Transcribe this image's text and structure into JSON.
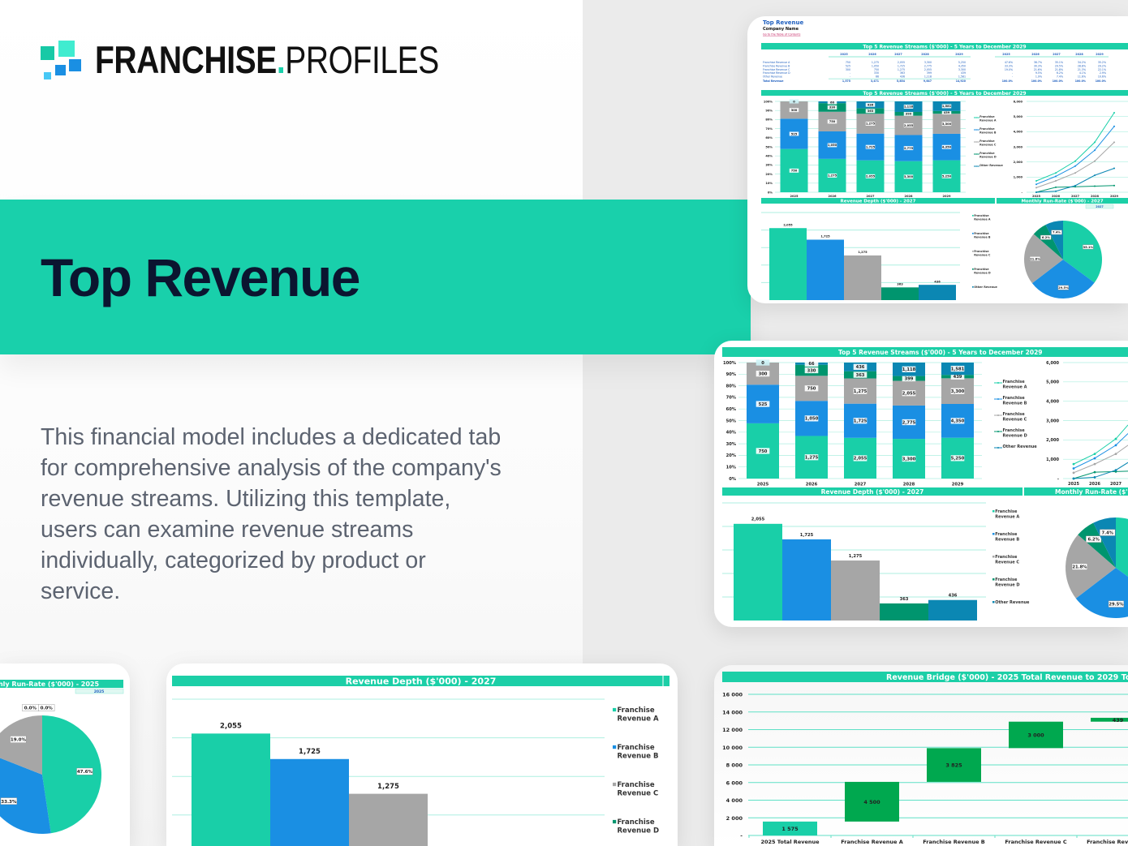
{
  "brand": {
    "name_bold": "FRANCHISE",
    "dot": ".",
    "name_light": "PROFILES"
  },
  "hero": {
    "title": "Top Revenue",
    "description": "This financial model includes a dedicated tab for comprehensive analysis of the company's revenue streams. Utilizing this template, users can examine revenue streams individually, categorized by product or service."
  },
  "sheet": {
    "title": "Top Revenue",
    "company": "Company Name",
    "toc_link": "Go to the Table of Contents"
  },
  "colors": {
    "accent": "#19d0ab",
    "franchise_revenue_a": "#19cfa8",
    "franchise_revenue_b": "#1a8fe3",
    "franchise_revenue_c": "#a6a6a6",
    "franchise_revenue_d": "#00956e",
    "other_revenue": "#0b87b3",
    "bridge_step": "#00a84f",
    "title_text": "#0b1530"
  },
  "chart_data": [
    {
      "type": "table",
      "title": "Top 5 Revenue Streams ($'000) - 5 Years to December 2029",
      "columns": [
        "2025",
        "2026",
        "2027",
        "2028",
        "2029"
      ],
      "rows": [
        {
          "name": "Franchise Revenue A",
          "values": [
            "750",
            "1,275",
            "2,055",
            "3,300",
            "5,250"
          ],
          "pct": [
            "47.6%",
            "36.7%",
            "35.1%",
            "34.2%",
            "35.2%"
          ]
        },
        {
          "name": "Franchise Revenue B",
          "values": [
            "525",
            "1,050",
            "1,725",
            "2,775",
            "4,350"
          ],
          "pct": [
            "33.3%",
            "30.3%",
            "29.5%",
            "28.8%",
            "29.2%"
          ]
        },
        {
          "name": "Franchise Revenue C",
          "values": [
            "300",
            "750",
            "1,275",
            "2,055",
            "3,300"
          ],
          "pct": [
            "19.0%",
            "21.6%",
            "21.8%",
            "21.3%",
            "22.1%"
          ]
        },
        {
          "name": "Franchise Revenue D",
          "values": [
            "-",
            "330",
            "363",
            "399",
            "439"
          ],
          "pct": [
            "-",
            "9.5%",
            "6.2%",
            "4.1%",
            "2.9%"
          ]
        },
        {
          "name": "Other Revenue",
          "values": [
            "-",
            "66",
            "436",
            "1,118",
            "1,581"
          ],
          "pct": [
            "-",
            "1.9%",
            "7.4%",
            "11.6%",
            "10.6%"
          ]
        },
        {
          "name": "Total Revenue",
          "values": [
            "1,575",
            "3,471",
            "5,854",
            "9,647",
            "14,920"
          ],
          "pct": [
            "100.0%",
            "100.0%",
            "100.0%",
            "100.0%",
            "100.0%"
          ]
        }
      ]
    },
    {
      "type": "bar",
      "stacked": "percent",
      "title": "Top 5 Revenue Streams ($'000) - 5 Years to December 2029",
      "categories": [
        "2025",
        "2026",
        "2027",
        "2028",
        "2029"
      ],
      "y_tick_labels": [
        "0%",
        "10%",
        "20%",
        "30%",
        "40%",
        "50%",
        "60%",
        "70%",
        "80%",
        "90%",
        "100%"
      ],
      "ylim": [
        0,
        100
      ],
      "legend": "right",
      "series": [
        {
          "name": "Franchise Revenue A",
          "values": [
            750,
            1275,
            2055,
            3300,
            5250
          ]
        },
        {
          "name": "Franchise Revenue B",
          "values": [
            525,
            1050,
            1725,
            2775,
            4350
          ]
        },
        {
          "name": "Franchise Revenue C",
          "values": [
            300,
            750,
            1275,
            2055,
            3300
          ]
        },
        {
          "name": "Franchise Revenue D",
          "values": [
            0,
            330,
            363,
            399,
            439
          ]
        },
        {
          "name": "Other Revenue",
          "values": [
            0,
            66,
            436,
            1118,
            1581
          ]
        }
      ]
    },
    {
      "type": "line",
      "x": [
        "2025",
        "2026",
        "2027",
        "2028",
        "2029"
      ],
      "y_tick_labels": [
        "-",
        "1,000",
        "2,000",
        "3,000",
        "4,000",
        "5,000",
        "6,000"
      ],
      "ylim": [
        0,
        6000
      ],
      "series": [
        {
          "name": "Franchise Revenue A",
          "values": [
            750,
            1275,
            2055,
            3300,
            5250
          ]
        },
        {
          "name": "Franchise Revenue B",
          "values": [
            525,
            1050,
            1725,
            2775,
            4350
          ]
        },
        {
          "name": "Franchise Revenue C",
          "values": [
            300,
            750,
            1275,
            2055,
            3300
          ]
        },
        {
          "name": "Franchise Revenue D",
          "values": [
            0,
            330,
            363,
            399,
            439
          ]
        },
        {
          "name": "Other Revenue",
          "values": [
            0,
            66,
            436,
            1118,
            1581
          ]
        }
      ]
    },
    {
      "type": "bar",
      "title": "Revenue Depth ($'000) - 2027",
      "categories": [
        "Franchise Revenue A",
        "Franchise Revenue B",
        "Franchise Revenue C",
        "Franchise Revenue D",
        "Other Revenue"
      ],
      "values": [
        2055,
        1725,
        1275,
        363,
        436
      ],
      "value_labels": [
        "2,055",
        "1,725",
        "1,275",
        "363",
        "436"
      ],
      "ylim": [
        0,
        2500
      ],
      "grid": true,
      "legend": "right"
    },
    {
      "type": "pie",
      "title": "Monthly Run-Rate ($'000) - 2027",
      "selector": "2027",
      "categories": [
        "Franchise Revenue A",
        "Franchise Revenue B",
        "Franchise Revenue C",
        "Franchise Revenue D",
        "Other Revenue"
      ],
      "values": [
        35.1,
        29.5,
        21.8,
        6.2,
        7.4
      ],
      "value_labels": [
        "35.1%",
        "29.5%",
        "21.8%",
        "6.2%",
        "7.4%"
      ]
    },
    {
      "type": "pie",
      "title": "Monthly Run-Rate ($'000) - 2025",
      "selector": "2025",
      "categories": [
        "Franchise Revenue A",
        "Franchise Revenue B",
        "Franchise Revenue C",
        "Franchise Revenue D",
        "Other Revenue"
      ],
      "values": [
        47.6,
        33.3,
        19.0,
        0.0,
        0.0
      ],
      "value_labels": [
        "47.6%",
        "33.3%",
        "19.0%",
        "0.0%",
        "0.0%"
      ]
    },
    {
      "type": "bar",
      "waterfall": true,
      "title": "Revenue Bridge ($'000) - 2025 Total Revenue to 2029 Total Revenue",
      "categories": [
        "2025 Total Revenue",
        "Franchise Revenue A",
        "Franchise Revenue B",
        "Franchise Revenue C",
        "Franchise Revenue D"
      ],
      "values": [
        1575,
        4500,
        3825,
        3000,
        439
      ],
      "value_labels": [
        "1 575",
        "4 500",
        "3 825",
        "3 000",
        "439"
      ],
      "y_tick_labels": [
        "-",
        "2 000",
        "4 000",
        "6 000",
        "8 000",
        "10 000",
        "12 000",
        "14 000",
        "16 000"
      ],
      "ylim": [
        0,
        16000
      ],
      "grid": true
    }
  ]
}
